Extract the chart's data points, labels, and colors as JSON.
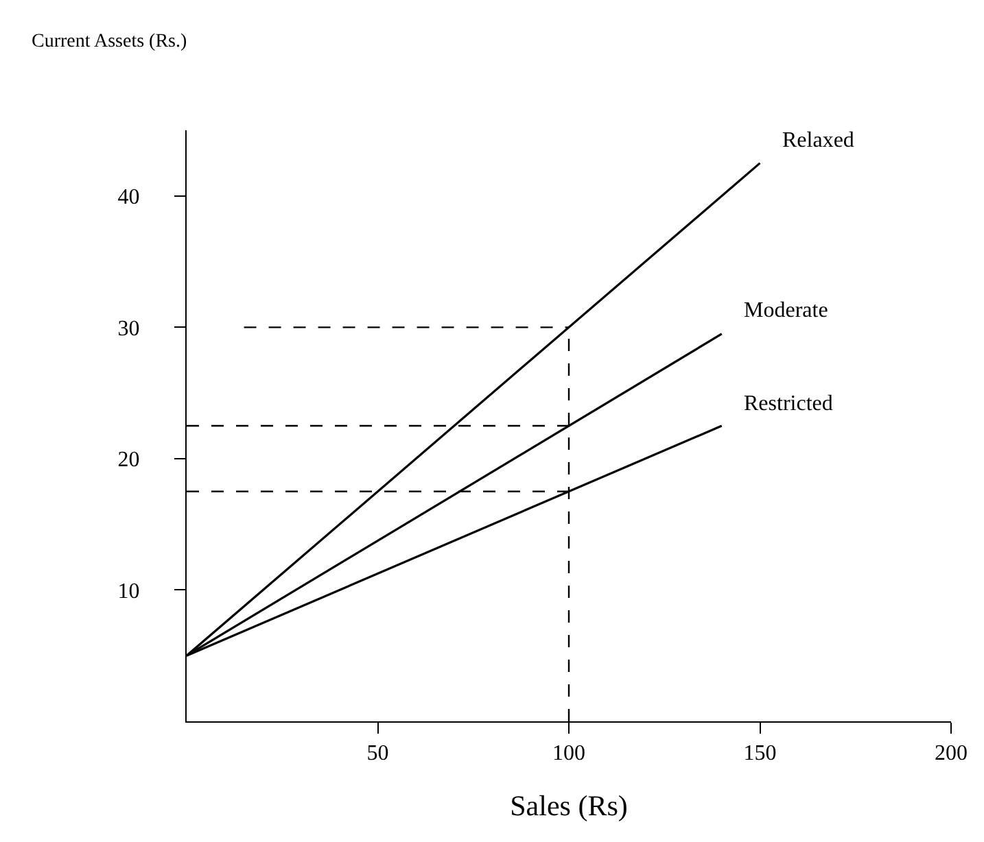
{
  "chart_data": {
    "type": "line",
    "xlabel": "Sales (Rs)",
    "ylabel": "Current Assets (Rs.)",
    "xlim": [
      0,
      200
    ],
    "ylim": [
      0,
      45
    ],
    "xticks": [
      50,
      100,
      150,
      200
    ],
    "yticks": [
      10,
      20,
      30,
      40
    ],
    "grid": false,
    "legend": false,
    "marker": "none",
    "series": [
      {
        "name": "Relaxed",
        "color": "#000000",
        "x": [
          0,
          150
        ],
        "values": [
          5,
          42.5
        ],
        "line_style": "solid"
      },
      {
        "name": "Moderate",
        "color": "#000000",
        "x": [
          0,
          140
        ],
        "values": [
          5,
          29.5
        ],
        "line_style": "solid"
      },
      {
        "name": "Restricted",
        "color": "#000000",
        "x": [
          0,
          140
        ],
        "values": [
          5,
          22.5
        ],
        "line_style": "solid"
      },
      {
        "color": "#000000",
        "x": [
          15,
          100
        ],
        "values": [
          30,
          30
        ],
        "line_style": "dashed"
      },
      {
        "color": "#000000",
        "x": [
          0,
          100
        ],
        "values": [
          22.5,
          22.5
        ],
        "line_style": "dashed"
      },
      {
        "color": "#000000",
        "x": [
          0,
          100
        ],
        "values": [
          17.5,
          17.5
        ],
        "line_style": "dashed"
      },
      {
        "color": "#000000",
        "x": [
          100,
          100
        ],
        "values": [
          0,
          30
        ],
        "line_style": "dashed"
      }
    ]
  }
}
